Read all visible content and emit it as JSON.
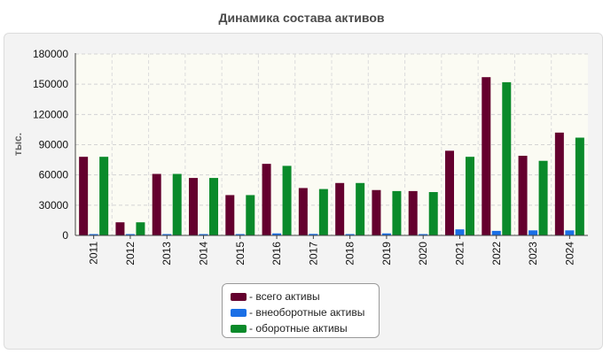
{
  "chart_data": {
    "type": "bar",
    "title": "Динамика состава активов",
    "ylabel": "тыс.",
    "xlabel": "",
    "ylim": [
      0,
      180000
    ],
    "yticks": [
      0,
      30000,
      60000,
      90000,
      120000,
      150000,
      180000
    ],
    "grid": true,
    "legend_position": "bottom-center",
    "categories": [
      "2011",
      "2012",
      "2013",
      "2014",
      "2015",
      "2016",
      "2017",
      "2018",
      "2019",
      "2020",
      "2021",
      "2022",
      "2023",
      "2024"
    ],
    "series": [
      {
        "name": "- всего активы",
        "color": "#64002e",
        "values": [
          78000,
          13000,
          61000,
          57000,
          40000,
          71000,
          47000,
          52000,
          45000,
          44000,
          84000,
          157000,
          79000,
          102000
        ]
      },
      {
        "name": "- внеоборотные активы",
        "color": "#1a6fe6",
        "values": [
          500,
          500,
          500,
          500,
          500,
          2000,
          1500,
          500,
          2000,
          500,
          6000,
          4500,
          5000,
          5000
        ]
      },
      {
        "name": "- оборотные активы",
        "color": "#0a8a2a",
        "values": [
          78000,
          13000,
          61000,
          57000,
          40000,
          69000,
          46000,
          52000,
          44000,
          43000,
          78000,
          152000,
          74000,
          97000
        ]
      }
    ]
  }
}
